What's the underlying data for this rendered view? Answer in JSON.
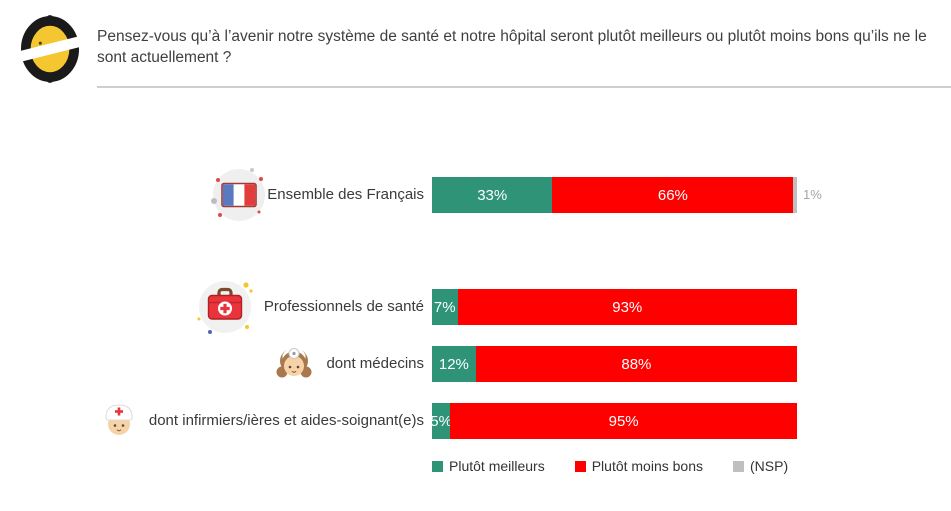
{
  "header": {
    "question": "Pensez-vous qu’à l’avenir notre système de santé et notre hôpital seront plutôt meilleurs ou plutôt moins bons qu’ils ne le sont actuellement ?",
    "logo": "odoxa-logo"
  },
  "chart_data": {
    "type": "bar",
    "orientation": "horizontal_stacked",
    "unit": "%",
    "xlim": [
      0,
      100
    ],
    "categories": [
      "Ensemble des Français",
      "Professionnels de santé",
      "dont médecins",
      "dont infirmiers/ières et aides-soignant(e)s"
    ],
    "series": [
      {
        "name": "Plutôt meilleurs",
        "color": "#2E9377",
        "values": [
          33,
          7,
          12,
          5
        ]
      },
      {
        "name": "Plutôt moins bons",
        "color": "#FF0000",
        "values": [
          66,
          93,
          88,
          95
        ]
      },
      {
        "name": "(NSP)",
        "color": "#BFBFBF",
        "values": [
          1,
          0,
          0,
          0
        ]
      }
    ],
    "legend_position": "bottom",
    "grid": false
  },
  "rows": [
    {
      "label": "Ensemble des Français",
      "icon": "france-flag-icon",
      "segments": {
        "meilleurs": {
          "value": 33,
          "label": "33%"
        },
        "moins_bons": {
          "value": 66,
          "label": "66%"
        },
        "nsp": {
          "value": 1,
          "label": "",
          "outside_label": "1%"
        }
      }
    },
    {
      "label": "Professionnels de santé",
      "icon": "first-aid-kit-icon",
      "segments": {
        "meilleurs": {
          "value": 7,
          "label": "7%"
        },
        "moins_bons": {
          "value": 93,
          "label": "93%"
        },
        "nsp": {
          "value": 0,
          "label": "",
          "outside_label": ""
        }
      }
    },
    {
      "label": "dont médecins",
      "icon": "doctor-icon",
      "segments": {
        "meilleurs": {
          "value": 12,
          "label": "12%"
        },
        "moins_bons": {
          "value": 88,
          "label": "88%"
        },
        "nsp": {
          "value": 0,
          "label": "",
          "outside_label": ""
        }
      }
    },
    {
      "label": "dont infirmiers/ières et aides-soignant(e)s",
      "icon": "nurse-icon",
      "segments": {
        "meilleurs": {
          "value": 5,
          "label": "5%"
        },
        "moins_bons": {
          "value": 95,
          "label": "95%"
        },
        "nsp": {
          "value": 0,
          "label": "",
          "outside_label": ""
        }
      }
    }
  ],
  "legend": {
    "items": [
      {
        "label": "Plutôt meilleurs",
        "color": "#2E9377"
      },
      {
        "label": "Plutôt moins bons",
        "color": "#FF0000"
      },
      {
        "label": "(NSP)",
        "color": "#BFBFBF"
      }
    ]
  },
  "colors": {
    "meilleurs": "#2E9377",
    "moins_bons": "#FF0000",
    "nsp": "#BFBFBF",
    "divider": "#CFCFCF",
    "text": "#3F3F3F",
    "outside_label": "#A6A6A6"
  }
}
